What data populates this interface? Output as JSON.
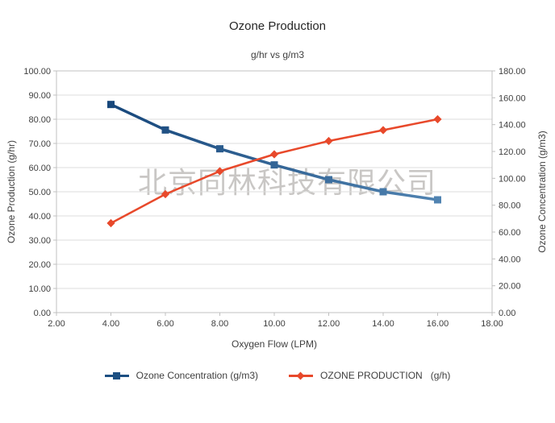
{
  "title": "Ozone Production",
  "subtitle": "g/hr vs g/m3",
  "watermark": "北京同林科技有限公司",
  "axes": {
    "x": {
      "label": "Oxygen Flow (LPM)",
      "ticks": [
        "2.00",
        "4.00",
        "6.00",
        "8.00",
        "10.00",
        "12.00",
        "14.00",
        "16.00",
        "18.00"
      ]
    },
    "y_left": {
      "label": "Ozone Production (g/hr)",
      "ticks": [
        "100.00",
        "90.00",
        "80.00",
        "70.00",
        "60.00",
        "50.00",
        "40.00",
        "30.00",
        "20.00",
        "10.00",
        "0.00"
      ]
    },
    "y_right": {
      "label": "Ozone Concentration (g/m3)",
      "ticks": [
        "180.00",
        "160.00",
        "140.00",
        "120.00",
        "100.00",
        "80.00",
        "60.00",
        "40.00",
        "20.00",
        "0.00"
      ]
    }
  },
  "legend": [
    {
      "label": "Ozone Concentration (g/m3)",
      "marker": "square",
      "color": "#1C4F82"
    },
    {
      "label": "OZONE PRODUCTION   (g/h)",
      "marker": "diamond",
      "color": "#E8492B"
    }
  ],
  "colors": {
    "grid": "#dcdcdc",
    "axis": "#c0c0c0",
    "tick_label": "#3f3f3f",
    "blue_start": "#17477B",
    "blue_end": "#5083B1",
    "orange": "#E8492B",
    "watermark": "#c9c7c5"
  },
  "chart_data": {
    "type": "line",
    "title": "Ozone Production",
    "subtitle": "g/hr vs g/m3",
    "xlabel": "Oxygen Flow (LPM)",
    "ylabel_left": "Ozone Production (g/hr)",
    "ylabel_right": "Ozone Concentration (g/m3)",
    "x": [
      4,
      6,
      8,
      10,
      12,
      14,
      16
    ],
    "x_range": [
      2,
      18
    ],
    "y_left_range": [
      0,
      100
    ],
    "y_right_range": [
      0,
      180
    ],
    "grid": "horizontal",
    "legend_position": "bottom",
    "series": [
      {
        "name": "Ozone Concentration (g/m3)",
        "axis": "right",
        "marker": "square",
        "color_start": "#17477B",
        "color_end": "#5083B1",
        "values": [
          155,
          136,
          122,
          110,
          99,
          90,
          84
        ]
      },
      {
        "name": "OZONE PRODUCTION   (g/h)",
        "axis": "left",
        "marker": "diamond",
        "color": "#E8492B",
        "values": [
          37,
          49,
          58.5,
          65.5,
          71,
          75.5,
          80
        ]
      }
    ]
  }
}
